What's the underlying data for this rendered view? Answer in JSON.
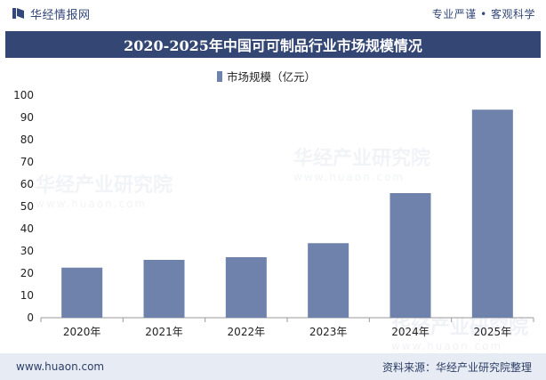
{
  "header": {
    "brand": "华经情报网",
    "slogan": "专业严谨 • 客观科学"
  },
  "title": "2020-2025年中国可可制品行业市场规模情况",
  "footer": {
    "website": "www.huaon.com",
    "source": "资料来源：华经产业研究院整理"
  },
  "watermark": {
    "cn": "华经产业研究院",
    "en": "www.huaon.com"
  },
  "colors": {
    "bar": "#6f82ac",
    "title_bg": "#344774",
    "footer_bg": "#e7ecf4"
  },
  "chart_data": {
    "type": "bar",
    "categories": [
      "2020年",
      "2021年",
      "2022年",
      "2023年",
      "2024年",
      "2025年"
    ],
    "series": [
      {
        "name": "市场规模（亿元）",
        "values": [
          22.5,
          26.0,
          27.2,
          33.5,
          56.0,
          93.5
        ]
      }
    ],
    "ylim": [
      0,
      100
    ],
    "yticks": [
      0,
      10,
      20,
      30,
      40,
      50,
      60,
      70,
      80,
      90,
      100
    ],
    "legend_position": "top-center",
    "grid": false
  }
}
